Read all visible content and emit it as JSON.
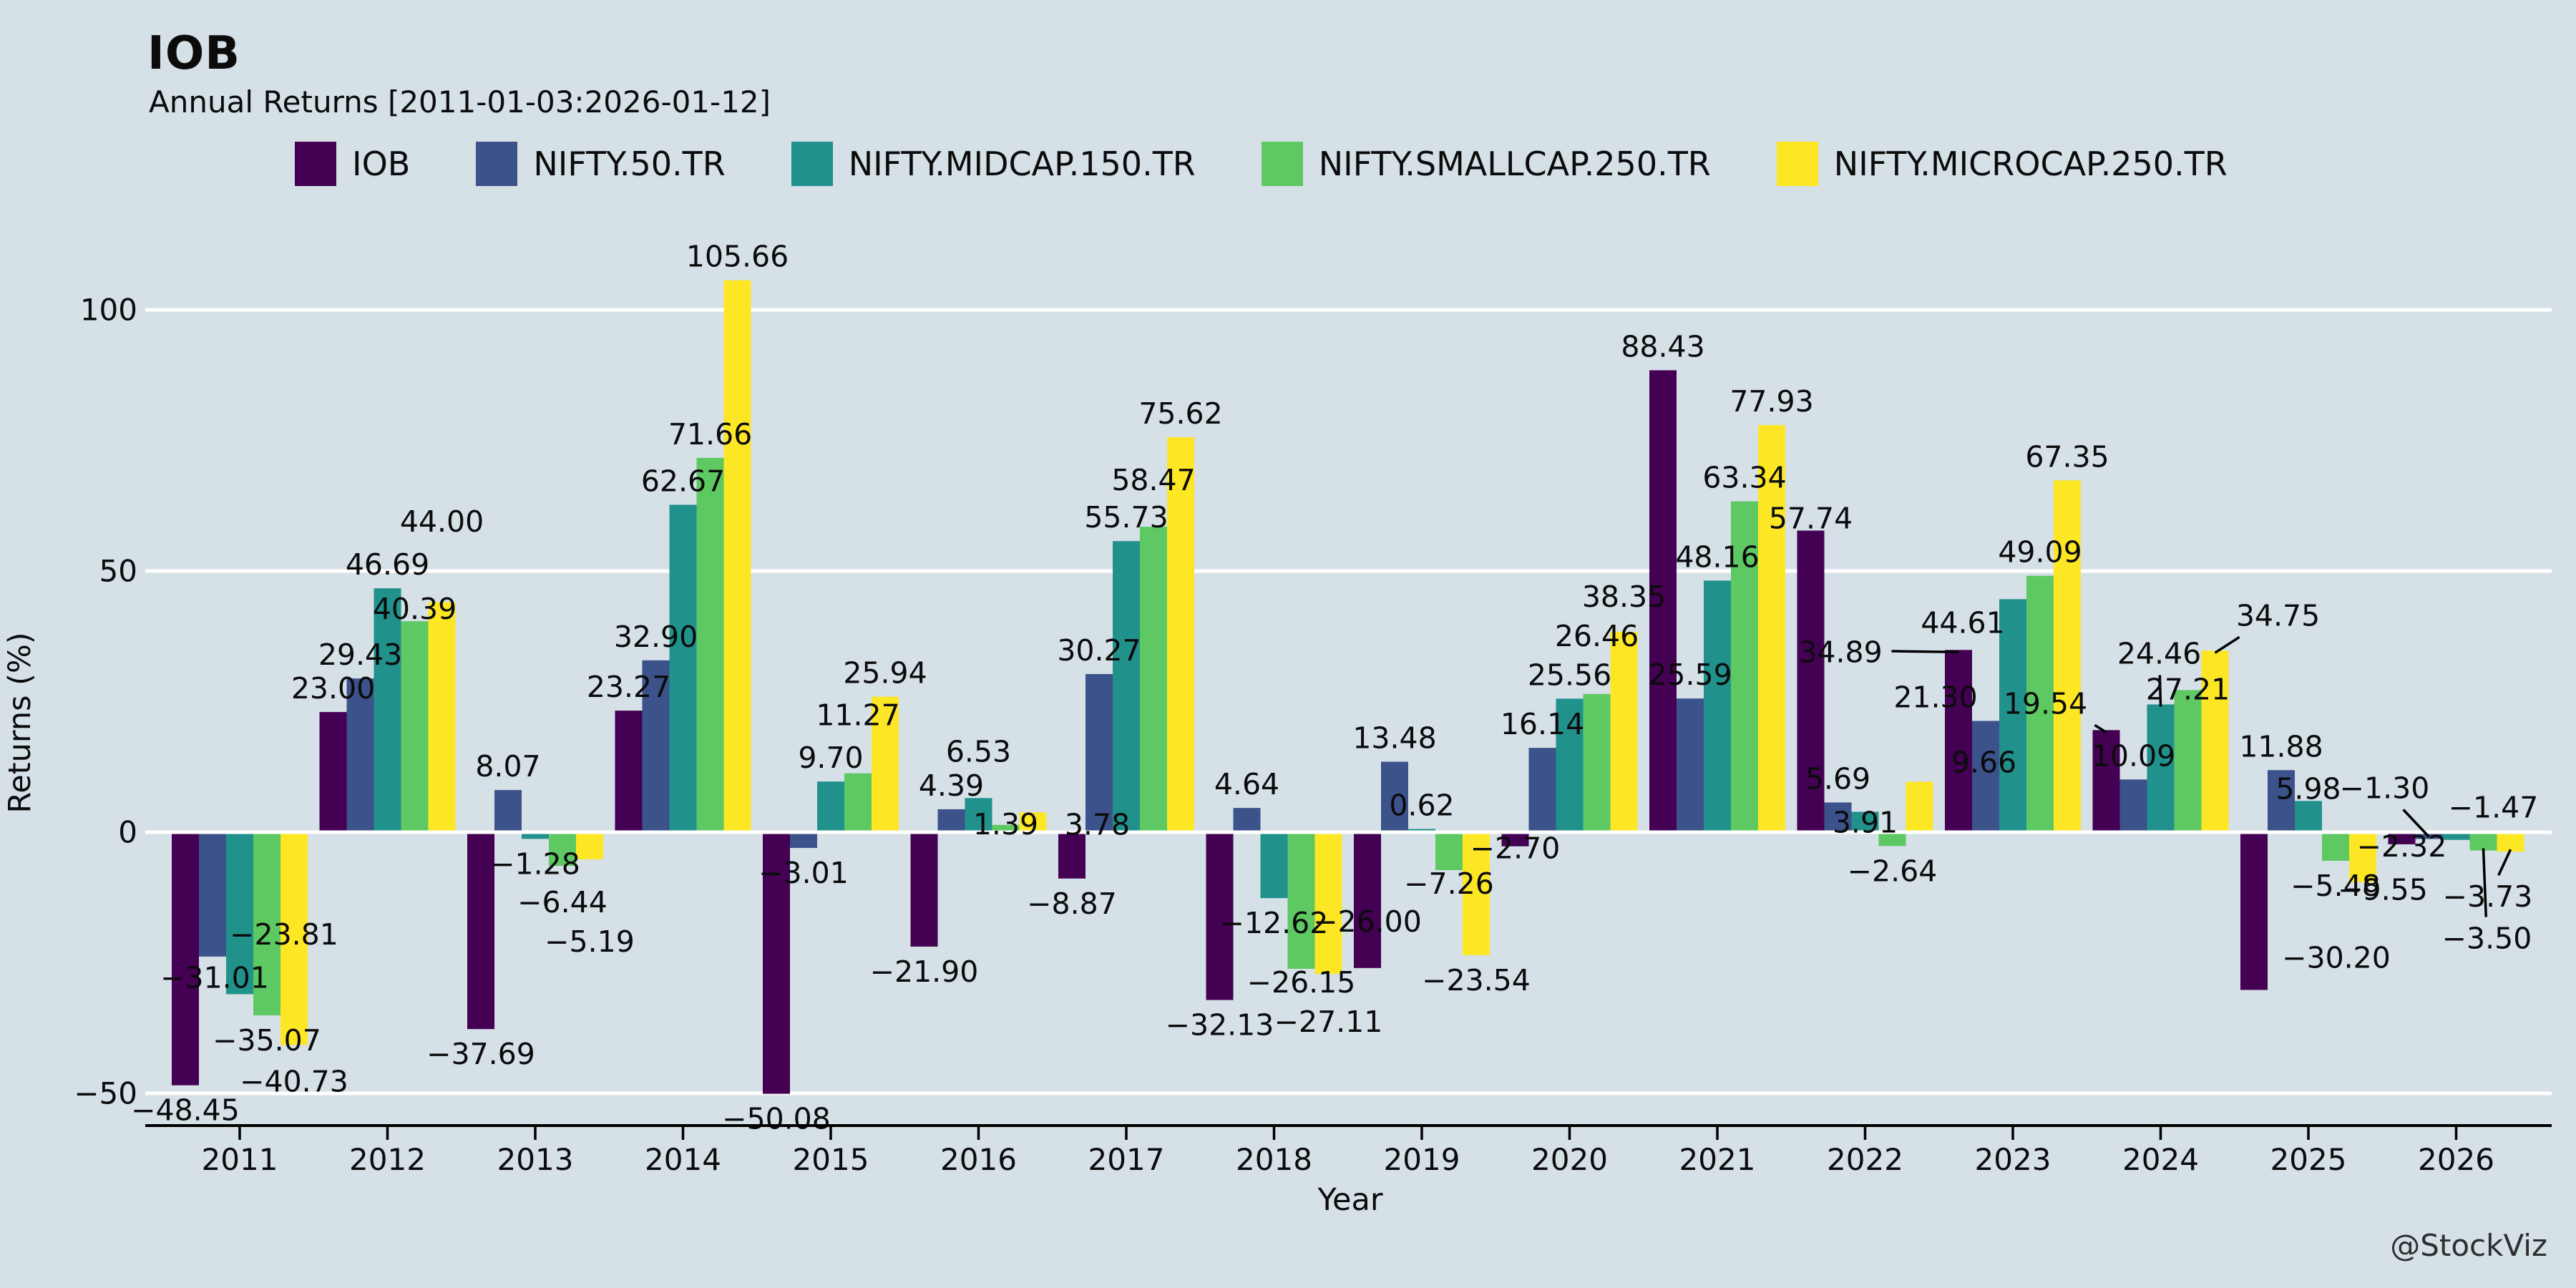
{
  "header": {
    "title": "IOB",
    "subtitle": "Annual Returns [2011-01-03:2026-01-12]"
  },
  "watermark": "@StockViz",
  "colors": {
    "background": "#d5e0e7",
    "grid": "#ffffff",
    "axis": "#000000",
    "text": "#0b0b0b"
  },
  "chart_data": {
    "type": "bar",
    "title": "IOB",
    "subtitle": "Annual Returns [2011-01-03:2026-01-12]",
    "xlabel": "Year",
    "ylabel": "Returns (%)",
    "yticks": [
      -50,
      0,
      50,
      100
    ],
    "ylim": [
      -62,
      118
    ],
    "grid": true,
    "legend_position": "top",
    "value_label_decimals": 2,
    "categories": [
      "2011",
      "2012",
      "2013",
      "2014",
      "2015",
      "2016",
      "2017",
      "2018",
      "2019",
      "2020",
      "2021",
      "2022",
      "2023",
      "2024",
      "2025",
      "2026"
    ],
    "series": [
      {
        "name": "IOB",
        "color": "#440154",
        "values": [
          -48.45,
          23.0,
          -37.69,
          23.27,
          -50.08,
          -21.9,
          -8.87,
          -32.13,
          -26.0,
          -2.7,
          88.43,
          57.74,
          34.89,
          19.54,
          -30.2,
          -2.32
        ]
      },
      {
        "name": "NIFTY.50.TR",
        "color": "#3b528b",
        "values": [
          -23.81,
          29.43,
          8.07,
          32.9,
          -3.01,
          4.39,
          30.27,
          4.64,
          13.48,
          16.14,
          25.59,
          5.69,
          21.3,
          10.09,
          11.88,
          -1.3
        ]
      },
      {
        "name": "NIFTY.MIDCAP.150.TR",
        "color": "#21918c",
        "values": [
          -31.01,
          46.69,
          -1.28,
          62.67,
          9.7,
          6.53,
          55.73,
          -12.62,
          0.62,
          25.56,
          48.16,
          3.91,
          44.61,
          24.46,
          5.98,
          -1.47
        ]
      },
      {
        "name": "NIFTY.SMALLCAP.250.TR",
        "color": "#5ec962",
        "values": [
          -35.07,
          40.39,
          -6.44,
          71.66,
          11.27,
          1.39,
          58.47,
          -26.15,
          -7.26,
          26.46,
          63.34,
          -2.64,
          49.09,
          27.21,
          -5.48,
          -3.5
        ]
      },
      {
        "name": "NIFTY.MICROCAP.250.TR",
        "color": "#fde725",
        "values": [
          -40.73,
          44.0,
          -5.19,
          105.66,
          25.94,
          3.78,
          75.62,
          -27.11,
          -23.54,
          38.35,
          77.93,
          9.66,
          67.35,
          34.75,
          -9.55,
          -3.73
        ]
      }
    ],
    "label_overrides": {
      "2011|NIFTY.50.TR": {
        "dx": 100,
        "dy": -66,
        "leader": false
      },
      "2011|NIFTY.MIDCAP.150.TR": {
        "dx": -35,
        "dy": -58,
        "leader": false
      },
      "2016|NIFTY.MICROCAP.250.TR": {
        "dx": 90,
        "dy": 50,
        "leader": false
      },
      "2019|IOB": {
        "dx": 0,
        "dy": -100,
        "leader": false
      },
      "2022|NIFTY.MICROCAP.250.TR": {
        "dx": 90,
        "dy": 6,
        "leader": false
      },
      "2023|IOB": {
        "dx": -165,
        "dy": 36,
        "leader": true
      },
      "2023|NIFTY.50.TR": {
        "dx": -70,
        "dy": 0,
        "leader": false
      },
      "2023|NIFTY.MIDCAP.150.TR": {
        "dx": -70,
        "dy": 66,
        "leader": false
      },
      "2024|IOB": {
        "dx": -85,
        "dy": -4,
        "leader": true
      },
      "2024|NIFTY.MIDCAP.150.TR": {
        "dx": -2,
        "dy": -38,
        "leader": true
      },
      "2024|NIFTY.MICROCAP.250.TR": {
        "dx": 88,
        "dy": -16,
        "leader": true
      },
      "2025|IOB": {
        "dx": 115,
        "dy": -80,
        "leader": false
      },
      "2025|NIFTY.MICROCAP.250.TR": {
        "dx": 28,
        "dy": -24,
        "leader": false
      },
      "2026|NIFTY.50.TR": {
        "dx": -62,
        "dy": -106,
        "leader": true
      },
      "2026|NIFTY.MIDCAP.150.TR": {
        "dx": 52,
        "dy": -80,
        "leader": false
      },
      "2026|NIFTY.SMALLCAP.250.TR": {
        "dx": 5,
        "dy": 88,
        "leader": true
      },
      "2026|NIFTY.MICROCAP.250.TR": {
        "dx": -32,
        "dy": 28,
        "leader": true
      }
    }
  }
}
